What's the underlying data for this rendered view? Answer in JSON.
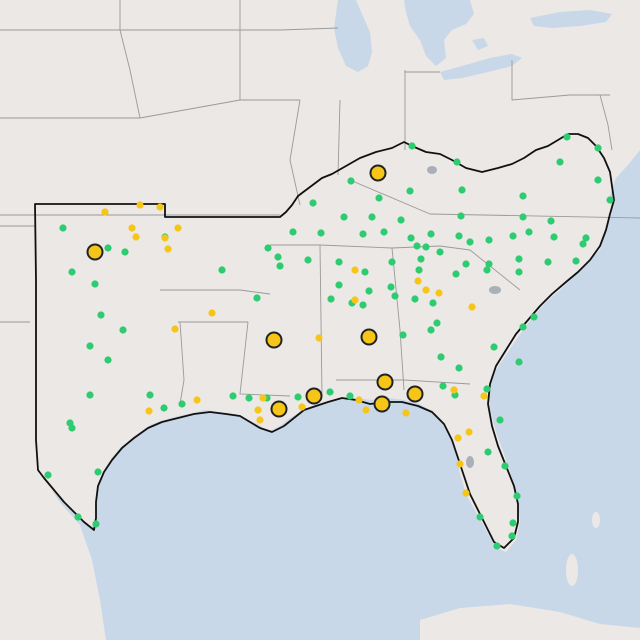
{
  "map": {
    "colors": {
      "land": "#ebe8e5",
      "water": "#c8d8e8",
      "state_border": "#9a9a9a",
      "region_outline": "#111111",
      "site_green": "#2ecc71",
      "site_yellow": "#f5c518",
      "major_outline": "#222222"
    },
    "legend": null,
    "sites_green": [
      [
        567,
        137
      ],
      [
        598,
        148
      ],
      [
        412,
        146
      ],
      [
        457,
        162
      ],
      [
        560,
        162
      ],
      [
        351,
        181
      ],
      [
        379,
        198
      ],
      [
        410,
        191
      ],
      [
        462,
        190
      ],
      [
        598,
        180
      ],
      [
        523,
        196
      ],
      [
        610,
        200
      ],
      [
        313,
        203
      ],
      [
        344,
        217
      ],
      [
        372,
        217
      ],
      [
        401,
        220
      ],
      [
        461,
        216
      ],
      [
        523,
        217
      ],
      [
        551,
        221
      ],
      [
        293,
        232
      ],
      [
        321,
        233
      ],
      [
        363,
        234
      ],
      [
        384,
        232
      ],
      [
        431,
        234
      ],
      [
        459,
        236
      ],
      [
        411,
        238
      ],
      [
        417,
        246
      ],
      [
        426,
        247
      ],
      [
        440,
        252
      ],
      [
        470,
        242
      ],
      [
        489,
        240
      ],
      [
        513,
        236
      ],
      [
        529,
        232
      ],
      [
        554,
        237
      ],
      [
        586,
        238
      ],
      [
        583,
        244
      ],
      [
        268,
        248
      ],
      [
        278,
        257
      ],
      [
        280,
        266
      ],
      [
        308,
        260
      ],
      [
        339,
        262
      ],
      [
        365,
        272
      ],
      [
        392,
        262
      ],
      [
        421,
        259
      ],
      [
        466,
        264
      ],
      [
        489,
        264
      ],
      [
        519,
        259
      ],
      [
        548,
        262
      ],
      [
        576,
        261
      ],
      [
        419,
        270
      ],
      [
        456,
        274
      ],
      [
        487,
        270
      ],
      [
        519,
        272
      ],
      [
        339,
        285
      ],
      [
        369,
        291
      ],
      [
        391,
        287
      ],
      [
        395,
        296
      ],
      [
        433,
        303
      ],
      [
        415,
        299
      ],
      [
        257,
        298
      ],
      [
        331,
        299
      ],
      [
        352,
        303
      ],
      [
        363,
        305
      ],
      [
        437,
        323
      ],
      [
        431,
        330
      ],
      [
        403,
        335
      ],
      [
        441,
        357
      ],
      [
        443,
        386
      ],
      [
        459,
        368
      ],
      [
        494,
        347
      ],
      [
        523,
        327
      ],
      [
        534,
        317
      ],
      [
        519,
        362
      ],
      [
        487,
        389
      ],
      [
        500,
        420
      ],
      [
        488,
        452
      ],
      [
        505,
        466
      ],
      [
        517,
        496
      ],
      [
        513,
        523
      ],
      [
        480,
        517
      ],
      [
        497,
        546
      ],
      [
        512,
        536
      ],
      [
        455,
        395
      ],
      [
        63,
        228
      ],
      [
        108,
        248
      ],
      [
        72,
        272
      ],
      [
        95,
        284
      ],
      [
        125,
        252
      ],
      [
        165,
        237
      ],
      [
        222,
        270
      ],
      [
        101,
        315
      ],
      [
        123,
        330
      ],
      [
        108,
        360
      ],
      [
        90,
        346
      ],
      [
        150,
        395
      ],
      [
        164,
        408
      ],
      [
        70,
        423
      ],
      [
        72,
        428
      ],
      [
        90,
        395
      ],
      [
        182,
        404
      ],
      [
        233,
        396
      ],
      [
        249,
        398
      ],
      [
        267,
        398
      ],
      [
        298,
        397
      ],
      [
        330,
        392
      ],
      [
        350,
        396
      ],
      [
        98,
        472
      ],
      [
        78,
        517
      ],
      [
        96,
        524
      ],
      [
        48,
        475
      ]
    ],
    "sites_yellow": [
      [
        105,
        212
      ],
      [
        140,
        205
      ],
      [
        160,
        207
      ],
      [
        132,
        228
      ],
      [
        136,
        237
      ],
      [
        165,
        238
      ],
      [
        178,
        228
      ],
      [
        168,
        249
      ],
      [
        175,
        329
      ],
      [
        212,
        313
      ],
      [
        319,
        338
      ],
      [
        355,
        270
      ],
      [
        355,
        300
      ],
      [
        418,
        281
      ],
      [
        426,
        290
      ],
      [
        439,
        293
      ],
      [
        472,
        307
      ],
      [
        454,
        390
      ],
      [
        469,
        432
      ],
      [
        458,
        438
      ],
      [
        460,
        464
      ],
      [
        484,
        396
      ],
      [
        149,
        411
      ],
      [
        197,
        400
      ],
      [
        258,
        410
      ],
      [
        260,
        420
      ],
      [
        302,
        407
      ],
      [
        359,
        400
      ],
      [
        366,
        410
      ],
      [
        406,
        413
      ],
      [
        263,
        398
      ],
      [
        466,
        493
      ]
    ],
    "sites_major": [
      [
        378,
        173
      ],
      [
        95,
        252
      ],
      [
        274,
        340
      ],
      [
        369,
        337
      ],
      [
        385,
        382
      ],
      [
        314,
        396
      ],
      [
        382,
        404
      ],
      [
        415,
        394
      ],
      [
        279,
        409
      ]
    ]
  }
}
